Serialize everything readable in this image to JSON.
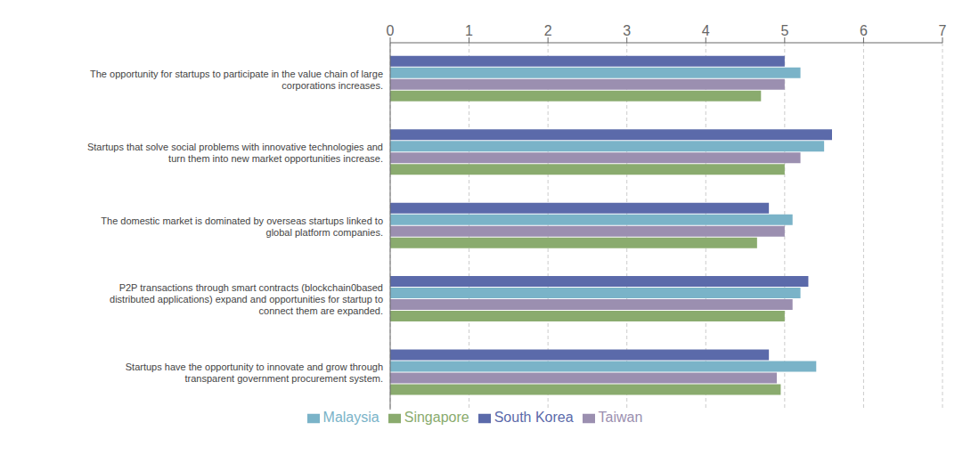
{
  "chart_data": {
    "type": "bar",
    "orientation": "horizontal",
    "categories": [
      "The opportunity for startups to participate in the value chain of large\ncorporations increases.",
      "Startups that solve social problems with innovative technologies and\nturn them into new market opportunities increase.",
      "The domestic market is dominated by overseas startups linked to\nglobal platform companies.",
      "P2P transactions through smart contracts (blockchain0based\ndistributed applications) expand and opportunities for startup to\nconnect them are expanded.",
      "Startups have the opportunity to innovate and grow through\ntransparent government procurement system."
    ],
    "series": [
      {
        "name": "South Korea",
        "color": "#5b6aaa",
        "values": [
          5.0,
          5.6,
          4.8,
          5.3,
          4.8
        ]
      },
      {
        "name": "Malaysia",
        "color": "#7ab3c8",
        "values": [
          5.2,
          5.5,
          5.1,
          5.2,
          5.4
        ]
      },
      {
        "name": "Taiwan",
        "color": "#9b8fb0",
        "values": [
          5.0,
          5.2,
          5.0,
          5.1,
          4.9
        ]
      },
      {
        "name": "Singapore",
        "color": "#8aab6e",
        "values": [
          4.7,
          5.0,
          4.65,
          5.0,
          4.95
        ]
      }
    ],
    "xlim": [
      0,
      7
    ],
    "xticks": [
      0,
      1,
      2,
      3,
      4,
      5,
      6,
      7
    ],
    "grid": true,
    "legend": "bottom"
  }
}
